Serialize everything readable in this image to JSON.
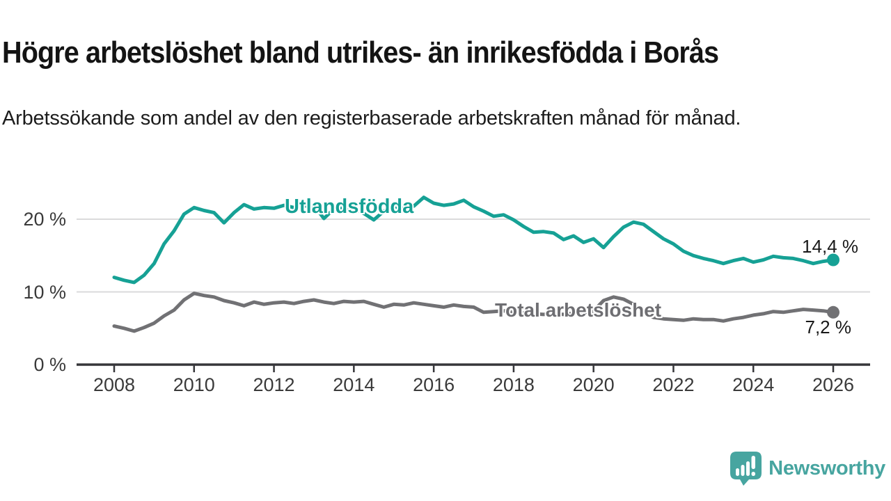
{
  "header": {
    "title": "Högre arbetslöshet bland utrikes- än inrikesfödda i Borås",
    "subtitle": "Arbetssökande som andel av den registerbaserade arbetskraften månad för månad."
  },
  "chart_data": {
    "type": "line",
    "title": "Högre arbetslöshet bland utrikes- än inrikesfödda i Borås",
    "subtitle": "Arbetssökande som andel av den registerbaserade arbetskraften månad för månad.",
    "unit": "%",
    "grid": "horizontal-only",
    "legend_position": "inline-labels-on-lines",
    "x_axis": {
      "ticks": [
        2008,
        2010,
        2012,
        2014,
        2016,
        2018,
        2020,
        2022,
        2024,
        2026
      ]
    },
    "y_axis": {
      "ticks": [
        {
          "value": 0,
          "label": "0 %"
        },
        {
          "value": 10,
          "label": "10 %"
        },
        {
          "value": 20,
          "label": "20 %"
        }
      ],
      "range": [
        0,
        24.3
      ]
    },
    "x_range_years": [
      2008,
      2026
    ],
    "x": [
      2008,
      2008.25,
      2008.5,
      2008.75,
      2009,
      2009.25,
      2009.5,
      2009.75,
      2010,
      2010.25,
      2010.5,
      2010.75,
      2011,
      2011.25,
      2011.5,
      2011.75,
      2012,
      2012.25,
      2012.5,
      2012.75,
      2013,
      2013.25,
      2013.5,
      2013.75,
      2014,
      2014.25,
      2014.5,
      2014.75,
      2015,
      2015.25,
      2015.5,
      2015.75,
      2016,
      2016.25,
      2016.5,
      2016.75,
      2017,
      2017.25,
      2017.5,
      2017.75,
      2018,
      2018.25,
      2018.5,
      2018.75,
      2019,
      2019.25,
      2019.5,
      2019.75,
      2020,
      2020.25,
      2020.5,
      2020.75,
      2021,
      2021.25,
      2021.5,
      2021.75,
      2022,
      2022.25,
      2022.5,
      2022.75,
      2023,
      2023.25,
      2023.5,
      2023.75,
      2024,
      2024.25,
      2024.5,
      2024.75,
      2025,
      2025.25,
      2025.5,
      2025.75,
      2026
    ],
    "series": [
      {
        "name": "Utlandsfödda",
        "color": "#16a195",
        "end_label": "14,4 %",
        "end_value": 14.4,
        "values": [
          12.0,
          11.6,
          11.3,
          12.3,
          13.9,
          16.6,
          18.4,
          20.7,
          21.6,
          21.2,
          20.9,
          19.5,
          20.9,
          22.0,
          21.4,
          21.6,
          21.5,
          21.9,
          21.6,
          21.8,
          21.9,
          20.1,
          21.4,
          21.7,
          21.5,
          20.8,
          19.9,
          21.1,
          21.8,
          21.4,
          21.8,
          23.0,
          22.2,
          21.9,
          22.1,
          22.6,
          21.7,
          21.1,
          20.4,
          20.6,
          19.9,
          19.0,
          18.2,
          18.3,
          18.1,
          17.2,
          17.7,
          16.8,
          17.3,
          16.1,
          17.6,
          18.9,
          19.6,
          19.3,
          18.3,
          17.3,
          16.6,
          15.6,
          15.0,
          14.6,
          14.3,
          13.9,
          14.3,
          14.6,
          14.1,
          14.4,
          14.9,
          14.7,
          14.6,
          14.3,
          13.9,
          14.2,
          14.4
        ]
      },
      {
        "name": "Total arbetslöshet",
        "color": "#717174",
        "end_label": "7,2 %",
        "end_value": 7.2,
        "values": [
          5.3,
          5.0,
          4.6,
          5.1,
          5.7,
          6.7,
          7.5,
          8.9,
          9.8,
          9.5,
          9.3,
          8.8,
          8.5,
          8.1,
          8.6,
          8.3,
          8.5,
          8.6,
          8.4,
          8.7,
          8.9,
          8.6,
          8.4,
          8.7,
          8.6,
          8.7,
          8.3,
          7.9,
          8.3,
          8.2,
          8.5,
          8.3,
          8.1,
          7.9,
          8.2,
          8.0,
          7.9,
          7.2,
          7.3,
          7.4,
          7.3,
          7.1,
          7.0,
          6.9,
          7.0,
          6.9,
          7.1,
          7.0,
          7.4,
          8.8,
          9.3,
          9.0,
          8.3,
          7.2,
          6.5,
          6.3,
          6.2,
          6.1,
          6.3,
          6.2,
          6.2,
          6.0,
          6.3,
          6.5,
          6.8,
          7.0,
          7.3,
          7.2,
          7.4,
          7.6,
          7.5,
          7.4,
          7.2
        ]
      }
    ]
  },
  "branding": {
    "name": "Newsworthy",
    "color": "#47a5a0",
    "icon": "newsworthy-speech-bubble-bar-chart-icon"
  }
}
